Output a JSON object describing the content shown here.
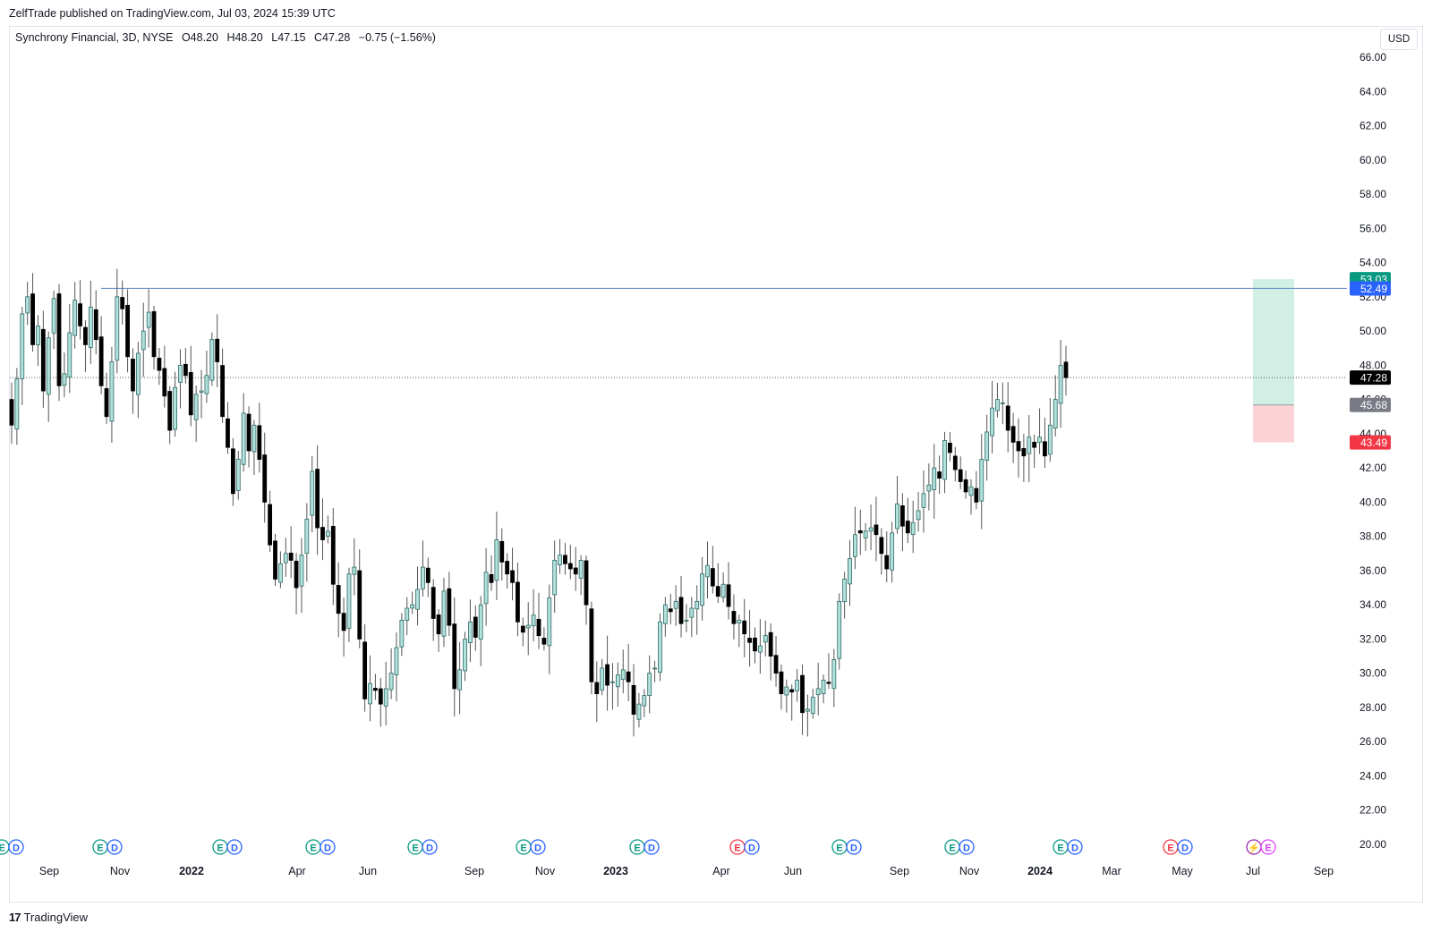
{
  "header": {
    "published_text": "ZelfTrade published on TradingView.com, Jul 03, 2024 15:39 UTC"
  },
  "legend": {
    "symbol": "Synchrony Financial, 3D, NYSE",
    "open": "O48.20",
    "high": "H48.20",
    "low": "L47.15",
    "close": "C47.28",
    "change": "−0.75 (−1.56%)"
  },
  "currency_button": "USD",
  "footer": {
    "brand": "TradingView",
    "logo_glyph": "17"
  },
  "colors": {
    "up_body": "#b2e0dc",
    "up_border": "#2e6b66",
    "down_body": "#000000",
    "target_zone": "#d2efe6",
    "stop_zone": "#fbd3d4",
    "hline": "#6c8fd1",
    "tag_green": "#089981",
    "tag_blue": "#2962ff",
    "tag_black": "#000000",
    "tag_gray": "#787b86",
    "tag_red": "#f23645"
  },
  "chart_data": {
    "type": "candlestick",
    "title": "Synchrony Financial, 3D, NYSE",
    "ylim": [
      20,
      66
    ],
    "y_ticks": [
      "20.00",
      "22.00",
      "24.00",
      "26.00",
      "28.00",
      "30.00",
      "32.00",
      "34.00",
      "36.00",
      "38.00",
      "40.00",
      "42.00",
      "44.00",
      "46.00",
      "48.00",
      "50.00",
      "52.00",
      "54.00",
      "56.00",
      "58.00",
      "60.00",
      "62.00",
      "64.00",
      "66.00"
    ],
    "x_labels": [
      {
        "label": "Sep",
        "bold": false
      },
      {
        "label": "Nov",
        "bold": false
      },
      {
        "label": "2022",
        "bold": true
      },
      {
        "label": "Apr",
        "bold": false
      },
      {
        "label": "Jun",
        "bold": false
      },
      {
        "label": "Sep",
        "bold": false
      },
      {
        "label": "Nov",
        "bold": false
      },
      {
        "label": "2023",
        "bold": true
      },
      {
        "label": "Apr",
        "bold": false
      },
      {
        "label": "Jun",
        "bold": false
      },
      {
        "label": "Sep",
        "bold": false
      },
      {
        "label": "Nov",
        "bold": false
      },
      {
        "label": "2024",
        "bold": true
      },
      {
        "label": "Mar",
        "bold": false
      },
      {
        "label": "May",
        "bold": false
      },
      {
        "label": "Jul",
        "bold": false
      },
      {
        "label": "Sep",
        "bold": false
      }
    ],
    "price_tags": [
      {
        "value": 53.03,
        "label": "53.03",
        "color": "#089981"
      },
      {
        "value": 52.49,
        "label": "52.49",
        "color": "#2962ff"
      },
      {
        "value": 47.28,
        "label": "47.28",
        "color": "#000000"
      },
      {
        "value": 45.68,
        "label": "45.68",
        "color": "#787b86"
      },
      {
        "value": 43.49,
        "label": "43.49",
        "color": "#f23645"
      }
    ],
    "horizontal_line": {
      "value": 52.49
    },
    "current_price": 47.28,
    "position": {
      "target": 53.03,
      "entry": 45.68,
      "stop": 43.49
    },
    "events": [
      {
        "type": "ED",
        "earnings_color": "green"
      },
      {
        "type": "ED",
        "earnings_color": "green"
      },
      {
        "type": "ED",
        "earnings_color": "green"
      },
      {
        "type": "ED",
        "earnings_color": "green"
      },
      {
        "type": "ED",
        "earnings_color": "green"
      },
      {
        "type": "ED",
        "earnings_color": "green"
      },
      {
        "type": "ED",
        "earnings_color": "green"
      },
      {
        "type": "ED",
        "earnings_color": "red"
      },
      {
        "type": "ED",
        "earnings_color": "green"
      },
      {
        "type": "ED",
        "earnings_color": "green"
      },
      {
        "type": "ED",
        "earnings_color": "green"
      },
      {
        "type": "ED",
        "earnings_color": "red"
      },
      {
        "type": "SE",
        "earnings_color": "purple"
      }
    ],
    "closes": [
      44.5,
      47.2,
      51.0,
      52.0,
      49.2,
      50.3,
      46.5,
      49.6,
      51.9,
      46.8,
      47.5,
      49.9,
      51.8,
      50.3,
      49.2,
      51.4,
      49.5,
      46.8,
      45.0,
      48.2,
      52.0,
      51.3,
      48.5,
      46.5,
      48.7,
      50.0,
      51.1,
      48.5,
      47.7,
      46.2,
      44.2,
      46.7,
      48.0,
      47.4,
      45.1,
      46.3,
      46.5,
      47.4,
      49.5,
      48.2,
      45.0,
      43.2,
      40.5,
      42.5,
      45.2,
      43.0,
      44.5,
      42.5,
      40.0,
      37.5,
      35.5,
      36.4,
      37.0,
      36.6,
      35.0,
      36.9,
      39.0,
      41.8,
      38.5,
      37.8,
      38.3,
      35.2,
      33.5,
      32.5,
      35.8,
      36.2,
      32.0,
      28.5,
      29.4,
      29.0,
      28.2,
      29.1,
      30.0,
      31.5,
      33.1,
      33.8,
      34.0,
      34.9,
      36.2,
      35.3,
      33.2,
      32.3,
      34.8,
      32.8,
      29.1,
      30.2,
      32.0,
      33.0,
      32.1,
      34.0,
      35.9,
      35.3,
      37.8,
      36.5,
      35.8,
      35.3,
      33.0,
      32.4,
      32.8,
      33.4,
      32.2,
      31.7,
      34.4,
      36.6,
      36.9,
      36.4,
      36.1,
      35.8,
      36.6,
      34.0,
      29.5,
      28.8,
      30.3,
      29.3,
      29.5,
      29.9,
      30.2,
      29.5,
      27.6,
      28.2,
      28.7,
      30.0,
      30.3,
      33.0,
      34.0,
      33.6,
      34.2,
      32.9,
      33.1,
      33.8,
      34.2,
      35.8,
      36.3,
      35.1,
      34.5,
      35.2,
      33.9,
      32.9,
      33.1,
      32.3,
      31.8,
      31.3,
      31.6,
      32.2,
      31.0,
      30.0,
      28.8,
      29.2,
      28.9,
      29.6,
      27.7,
      27.9,
      28.6,
      29.1,
      29.6,
      29.4,
      30.8,
      34.2,
      35.5,
      36.7,
      38.1,
      38.2,
      38.3,
      38.5,
      38.1,
      37.0,
      36.1,
      38.2,
      39.9,
      38.6,
      38.2,
      38.8,
      39.5,
      40.5,
      41.0,
      42.0,
      41.4,
      43.6,
      42.9,
      41.9,
      41.2,
      40.6,
      40.9,
      40.0,
      42.5,
      44.1,
      45.5,
      46.0,
      45.8,
      44.2,
      43.5,
      43.0,
      42.7,
      43.8,
      43.2,
      43.8,
      42.7,
      44.5,
      46.0,
      48.0,
      47.28
    ]
  }
}
